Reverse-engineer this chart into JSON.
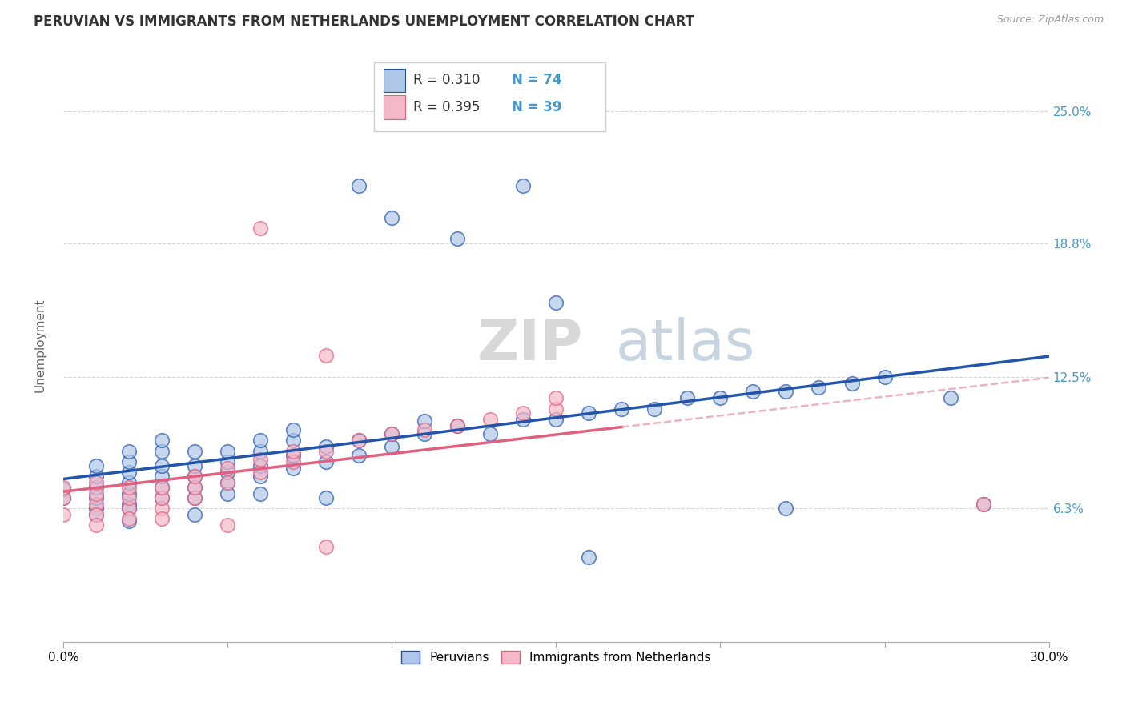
{
  "title": "PERUVIAN VS IMMIGRANTS FROM NETHERLANDS UNEMPLOYMENT CORRELATION CHART",
  "source_text": "Source: ZipAtlas.com",
  "ylabel": "Unemployment",
  "xlim": [
    0.0,
    0.3
  ],
  "ylim": [
    0.0,
    0.28
  ],
  "ytick_positions": [
    0.063,
    0.125,
    0.188,
    0.25
  ],
  "ytick_labels": [
    "6.3%",
    "12.5%",
    "18.8%",
    "25.0%"
  ],
  "xtick_positions": [
    0.0,
    0.05,
    0.1,
    0.15,
    0.2,
    0.25,
    0.3
  ],
  "xtick_labels": [
    "0.0%",
    "",
    "",
    "",
    "",
    "",
    "30.0%"
  ],
  "blue_color": "#aec6e8",
  "pink_color": "#f4b8c8",
  "blue_line_color": "#2255aa",
  "pink_line_color": "#e06080",
  "pink_dash_color": "#e8a0b0",
  "r_value_color": "#4499cc",
  "background_color": "#ffffff",
  "grid_color": "#cccccc",
  "peruvian_x": [
    0.0,
    0.0,
    0.01,
    0.01,
    0.01,
    0.01,
    0.01,
    0.01,
    0.02,
    0.02,
    0.02,
    0.02,
    0.02,
    0.02,
    0.02,
    0.02,
    0.03,
    0.03,
    0.03,
    0.03,
    0.03,
    0.03,
    0.04,
    0.04,
    0.04,
    0.04,
    0.04,
    0.04,
    0.05,
    0.05,
    0.05,
    0.05,
    0.05,
    0.06,
    0.06,
    0.06,
    0.06,
    0.06,
    0.07,
    0.07,
    0.07,
    0.07,
    0.08,
    0.08,
    0.08,
    0.09,
    0.09,
    0.1,
    0.1,
    0.11,
    0.11,
    0.12,
    0.13,
    0.14,
    0.15,
    0.16,
    0.17,
    0.18,
    0.19,
    0.2,
    0.21,
    0.22,
    0.23,
    0.24,
    0.25,
    0.27,
    0.09,
    0.1,
    0.15,
    0.16,
    0.22,
    0.12,
    0.14,
    0.28
  ],
  "peruvian_y": [
    0.068,
    0.072,
    0.063,
    0.068,
    0.073,
    0.078,
    0.083,
    0.06,
    0.065,
    0.07,
    0.075,
    0.08,
    0.085,
    0.09,
    0.063,
    0.057,
    0.068,
    0.073,
    0.078,
    0.083,
    0.09,
    0.095,
    0.073,
    0.078,
    0.083,
    0.09,
    0.068,
    0.06,
    0.075,
    0.08,
    0.085,
    0.09,
    0.07,
    0.078,
    0.083,
    0.09,
    0.095,
    0.07,
    0.082,
    0.088,
    0.095,
    0.1,
    0.085,
    0.092,
    0.068,
    0.088,
    0.095,
    0.092,
    0.098,
    0.098,
    0.104,
    0.102,
    0.098,
    0.105,
    0.105,
    0.108,
    0.11,
    0.11,
    0.115,
    0.115,
    0.118,
    0.118,
    0.12,
    0.122,
    0.125,
    0.115,
    0.215,
    0.2,
    0.16,
    0.04,
    0.063,
    0.19,
    0.215,
    0.065
  ],
  "netherlands_x": [
    0.0,
    0.0,
    0.0,
    0.01,
    0.01,
    0.01,
    0.01,
    0.01,
    0.02,
    0.02,
    0.02,
    0.02,
    0.03,
    0.03,
    0.03,
    0.03,
    0.04,
    0.04,
    0.04,
    0.05,
    0.05,
    0.05,
    0.06,
    0.06,
    0.07,
    0.07,
    0.08,
    0.08,
    0.09,
    0.1,
    0.11,
    0.12,
    0.13,
    0.14,
    0.15,
    0.15,
    0.06,
    0.08,
    0.28
  ],
  "netherlands_y": [
    0.068,
    0.073,
    0.06,
    0.065,
    0.07,
    0.075,
    0.06,
    0.055,
    0.063,
    0.068,
    0.073,
    0.058,
    0.063,
    0.068,
    0.073,
    0.058,
    0.068,
    0.073,
    0.078,
    0.075,
    0.082,
    0.055,
    0.08,
    0.086,
    0.085,
    0.09,
    0.09,
    0.045,
    0.095,
    0.098,
    0.1,
    0.102,
    0.105,
    0.108,
    0.11,
    0.115,
    0.195,
    0.135,
    0.065
  ]
}
